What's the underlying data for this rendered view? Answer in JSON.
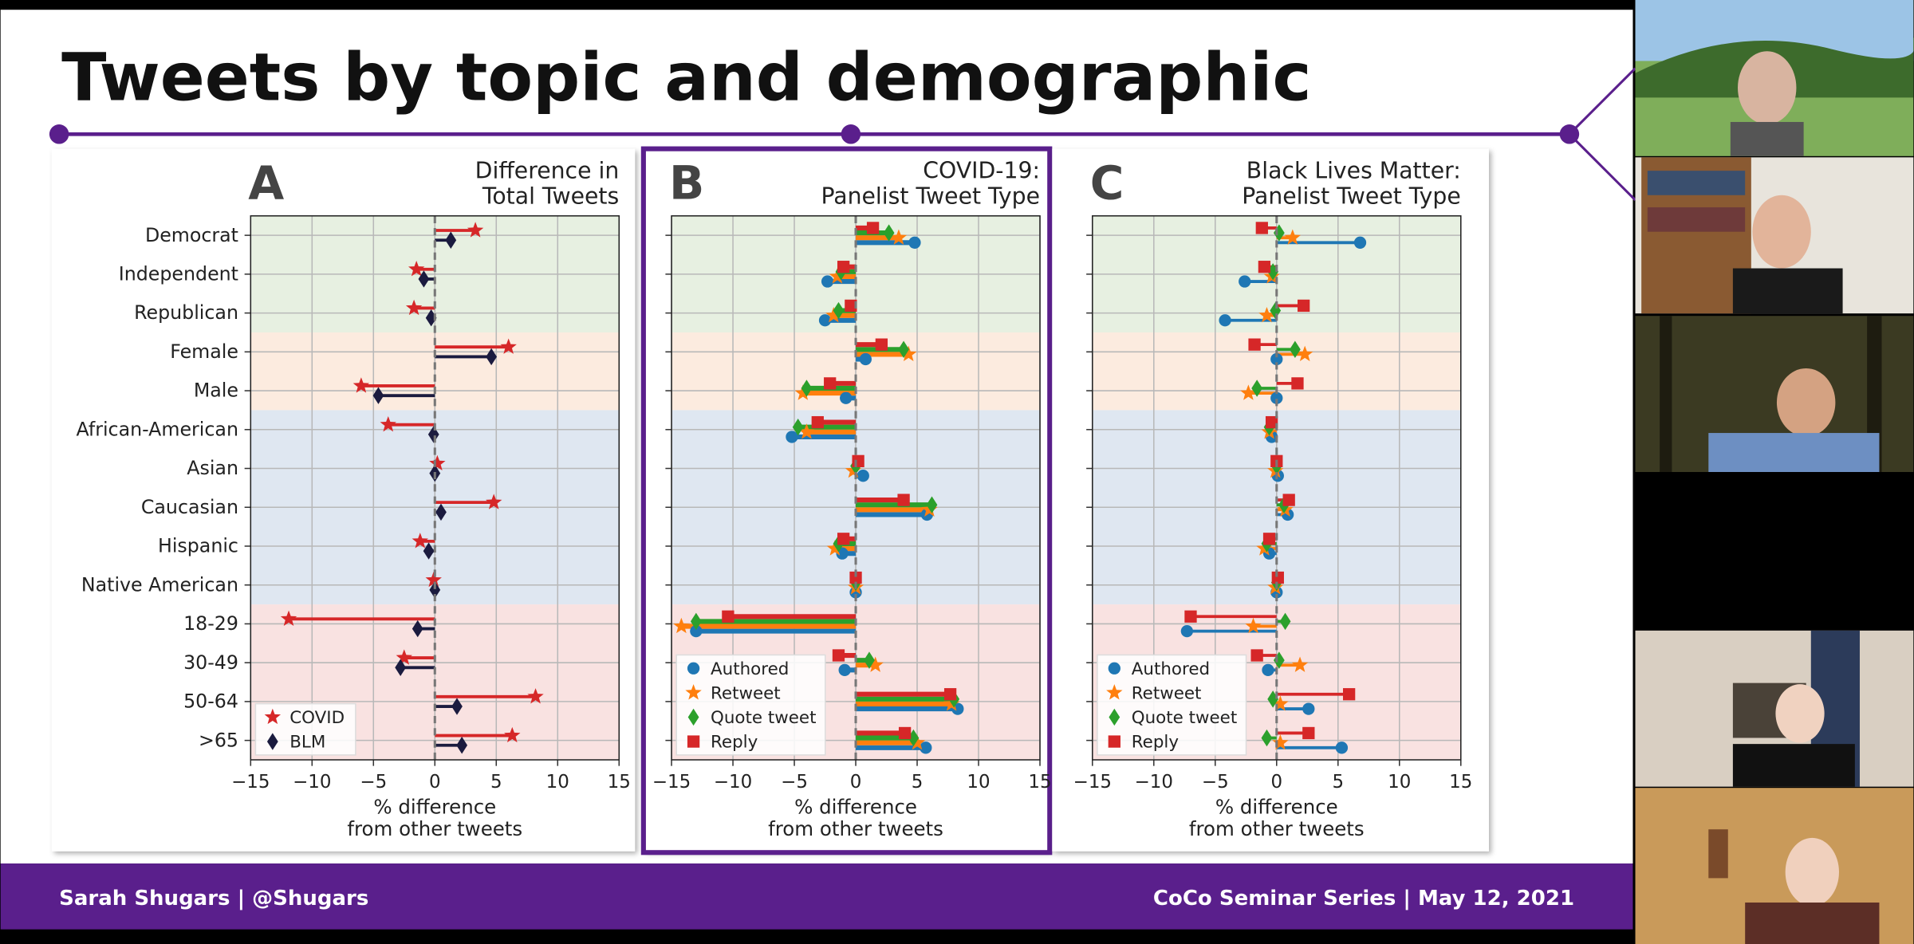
{
  "slide": {
    "title": "Tweets by topic and demographic",
    "footer_left": "Sarah Shugars | @Shugars",
    "footer_right": "CoCo Seminar Series | May 12, 2021"
  },
  "chart_data": [
    {
      "type": "lollipop",
      "panel": "A",
      "title": [
        "Difference in",
        "Total Tweets"
      ],
      "xlabel": [
        "% difference",
        "from other tweets"
      ],
      "categories": [
        "Democrat",
        "Independent",
        "Republican",
        "Female",
        "Male",
        "African-American",
        "Asian",
        "Caucasian",
        "Hispanic",
        "Native American",
        "18-29",
        "30-49",
        "50-64",
        ">65"
      ],
      "series": [
        {
          "name": "COVID",
          "color": "#d62728",
          "marker": "star",
          "values": [
            3.3,
            -1.5,
            -1.7,
            6,
            -6,
            -3.8,
            0.2,
            4.8,
            -1.2,
            -0.1,
            -11.9,
            -2.5,
            8.2,
            6.3
          ]
        },
        {
          "name": "BLM",
          "color": "#1b1b3f",
          "marker": "diamond",
          "values": [
            1.3,
            -0.9,
            -0.3,
            4.6,
            -4.6,
            -0.1,
            0,
            0.5,
            -0.5,
            0,
            -1.4,
            -2.8,
            1.8,
            2.2
          ]
        }
      ],
      "xlim": [
        -15,
        15
      ],
      "xticks": [
        {
          "value": -15,
          "label": "−15"
        },
        {
          "value": -10,
          "label": "−10"
        },
        {
          "value": -5,
          "label": "−5"
        },
        0,
        5,
        10,
        15
      ],
      "grid": true,
      "legend": "lower left"
    },
    {
      "type": "lollipop",
      "panel": "B",
      "title": [
        "COVID-19:",
        "Panelist Tweet Type"
      ],
      "xlabel": [
        "% difference",
        "from other tweets"
      ],
      "series": [
        {
          "name": "Authored",
          "color": "#1f77b4",
          "marker": "circle",
          "values": [
            4.8,
            -2.3,
            -2.5,
            0.8,
            -0.8,
            -5.2,
            0.6,
            5.8,
            -1.1,
            0,
            -13,
            -0.9,
            8.3,
            5.7
          ]
        },
        {
          "name": "Retweet",
          "color": "#ff7f0e",
          "marker": "star",
          "values": [
            3.5,
            -1.5,
            -1.8,
            4.3,
            -4.3,
            -4,
            -0.2,
            6,
            -1.7,
            0,
            -14.2,
            1.6,
            7.8,
            5
          ]
        },
        {
          "name": "Quote tweet",
          "color": "#2ca02c",
          "marker": "diamond",
          "values": [
            2.7,
            -1.2,
            -1.4,
            3.9,
            -4,
            -4.7,
            0,
            6.2,
            -1.4,
            0,
            -13,
            1.1,
            8,
            4.7
          ]
        },
        {
          "name": "Reply",
          "color": "#d62728",
          "marker": "square",
          "values": [
            1.4,
            -1,
            -0.4,
            2.1,
            -2.1,
            -3.1,
            0.2,
            3.9,
            -1,
            0,
            -10.4,
            -1.4,
            7.7,
            4
          ]
        }
      ],
      "xlim": [
        -15,
        15
      ],
      "xticks": [
        {
          "value": -15,
          "label": "−15"
        },
        {
          "value": -10,
          "label": "−10"
        },
        {
          "value": -5,
          "label": "−5"
        },
        0,
        5,
        10,
        15
      ],
      "grid": true,
      "legend": "lower left"
    },
    {
      "type": "lollipop",
      "panel": "C",
      "title": [
        "Black Lives Matter:",
        "Panelist Tweet Type"
      ],
      "xlabel": [
        "% difference",
        "from other tweets"
      ],
      "series": [
        {
          "name": "Authored",
          "color": "#1f77b4",
          "marker": "circle",
          "values": [
            6.8,
            -2.6,
            -4.2,
            0,
            0,
            -0.4,
            0.1,
            0.9,
            -0.6,
            0,
            -7.3,
            -0.7,
            2.6,
            5.3
          ]
        },
        {
          "name": "Retweet",
          "color": "#ff7f0e",
          "marker": "star",
          "values": [
            1.3,
            -0.4,
            -0.8,
            2.3,
            -2.3,
            -0.6,
            -0.1,
            0.7,
            -1,
            -0.1,
            -1.9,
            1.9,
            0.3,
            0.3
          ]
        },
        {
          "name": "Quote tweet",
          "color": "#2ca02c",
          "marker": "diamond",
          "values": [
            0.2,
            -0.3,
            -0.1,
            1.5,
            -1.6,
            -0.6,
            0,
            0.6,
            -0.8,
            0,
            0.7,
            0.2,
            -0.3,
            -0.8
          ]
        },
        {
          "name": "Reply",
          "color": "#d62728",
          "marker": "square",
          "values": [
            -1.2,
            -1,
            2.2,
            -1.8,
            1.7,
            -0.4,
            0,
            1,
            -0.6,
            0.1,
            -7,
            -1.6,
            5.9,
            2.6
          ]
        }
      ],
      "xlim": [
        -15,
        15
      ],
      "xticks": [
        {
          "value": -15,
          "label": "−15"
        },
        {
          "value": -10,
          "label": "−10"
        },
        {
          "value": -5,
          "label": "−5"
        },
        0,
        5,
        10,
        15
      ],
      "grid": true,
      "legend": "lower left"
    }
  ]
}
